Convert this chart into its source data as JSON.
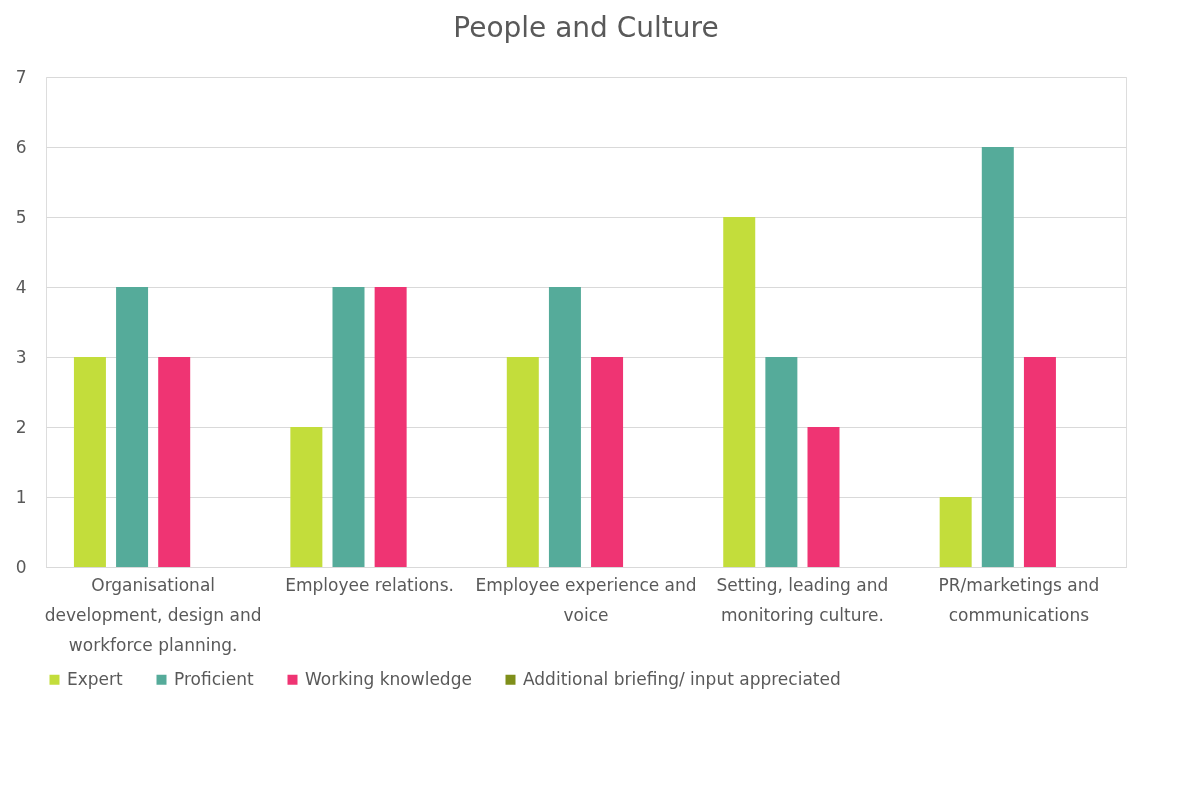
{
  "chart_data": {
    "type": "bar",
    "title": "People and Culture",
    "categories": [
      "Organisational development, design and workforce planning.",
      "Employee relations.",
      "Employee experience and voice",
      "Setting, leading and monitoring culture.",
      "PR/marketings and communications"
    ],
    "series": [
      {
        "name": "Expert",
        "color": "#c3dd3b",
        "values": [
          3,
          2,
          3,
          5,
          1
        ]
      },
      {
        "name": "Proficient",
        "color": "#55ab9a",
        "values": [
          4,
          4,
          4,
          3,
          6
        ]
      },
      {
        "name": "Working knowledge",
        "color": "#ef3473",
        "values": [
          3,
          4,
          3,
          2,
          3
        ]
      },
      {
        "name": "Additional briefing/ input appreciated",
        "color": "#7f8f1a",
        "values": [
          null,
          null,
          null,
          null,
          null
        ]
      }
    ],
    "ylim": [
      0,
      7
    ],
    "yticks": [
      0,
      1,
      2,
      3,
      4,
      5,
      6,
      7
    ],
    "grid": "y",
    "legend": "bottom"
  }
}
